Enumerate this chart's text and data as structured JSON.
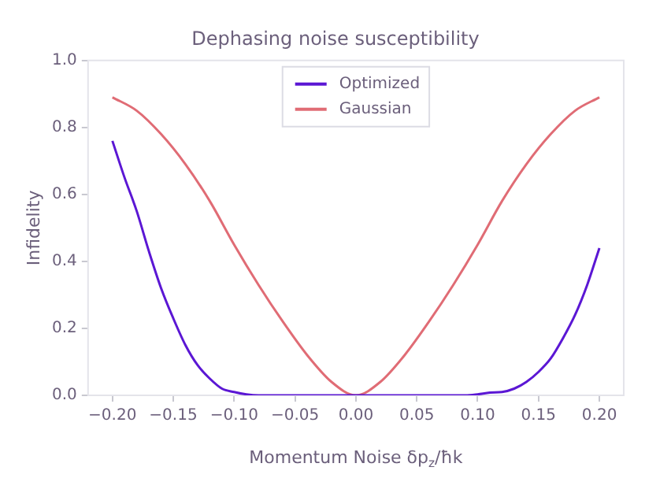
{
  "chart_data": {
    "type": "line",
    "title": "Dephasing noise susceptibility",
    "xlabel": "Momentum Noise δp$_{z}$/ħk",
    "ylabel": "Infidelity",
    "xlim": [
      -0.22,
      0.22
    ],
    "ylim": [
      0,
      1
    ],
    "xticks": [
      {
        "value": -0.2,
        "label": "−0.20"
      },
      {
        "value": -0.15,
        "label": "−0.15"
      },
      {
        "value": -0.1,
        "label": "−0.10"
      },
      {
        "value": -0.05,
        "label": "−0.05"
      },
      {
        "value": 0,
        "label": "0.00"
      },
      {
        "value": 0.05,
        "label": "0.05"
      },
      {
        "value": 0.1,
        "label": "0.10"
      },
      {
        "value": 0.15,
        "label": "0.15"
      },
      {
        "value": 0.2,
        "label": "0.20"
      }
    ],
    "yticks": [
      {
        "value": 0,
        "label": "0.0"
      },
      {
        "value": 0.2,
        "label": "0.2"
      },
      {
        "value": 0.4,
        "label": "0.4"
      },
      {
        "value": 0.6,
        "label": "0.6"
      },
      {
        "value": 0.8,
        "label": "0.8"
      },
      {
        "value": 1,
        "label": "1.0"
      }
    ],
    "grid": false,
    "legend": "top",
    "marker": "none",
    "line_style": "solid",
    "series": [
      {
        "name": "Optimized",
        "color": "#5b17d4",
        "x": [
          -0.2,
          -0.19,
          -0.18,
          -0.17,
          -0.16,
          -0.15,
          -0.14,
          -0.13,
          -0.12,
          -0.11,
          -0.1,
          -0.09,
          -0.08,
          -0.05,
          0,
          0.05,
          0.09,
          0.1,
          0.11,
          0.12,
          0.13,
          0.14,
          0.15,
          0.16,
          0.17,
          0.18,
          0.19,
          0.2
        ],
        "values": [
          0.76,
          0.65,
          0.55,
          0.43,
          0.32,
          0.23,
          0.15,
          0.09,
          0.05,
          0.02,
          0.01,
          0.003,
          0,
          0,
          0,
          0,
          0,
          0.003,
          0.008,
          0.01,
          0.02,
          0.04,
          0.07,
          0.11,
          0.17,
          0.24,
          0.33,
          0.44
        ]
      },
      {
        "name": "Gaussian",
        "color": "#e06c75",
        "x": [
          -0.2,
          -0.18,
          -0.16,
          -0.14,
          -0.12,
          -0.1,
          -0.08,
          -0.06,
          -0.04,
          -0.02,
          0,
          0.02,
          0.04,
          0.06,
          0.08,
          0.1,
          0.12,
          0.14,
          0.16,
          0.18,
          0.2
        ],
        "values": [
          0.89,
          0.85,
          0.78,
          0.69,
          0.58,
          0.45,
          0.33,
          0.22,
          0.12,
          0.04,
          0,
          0.04,
          0.12,
          0.22,
          0.33,
          0.45,
          0.58,
          0.69,
          0.78,
          0.85,
          0.89
        ]
      }
    ]
  }
}
